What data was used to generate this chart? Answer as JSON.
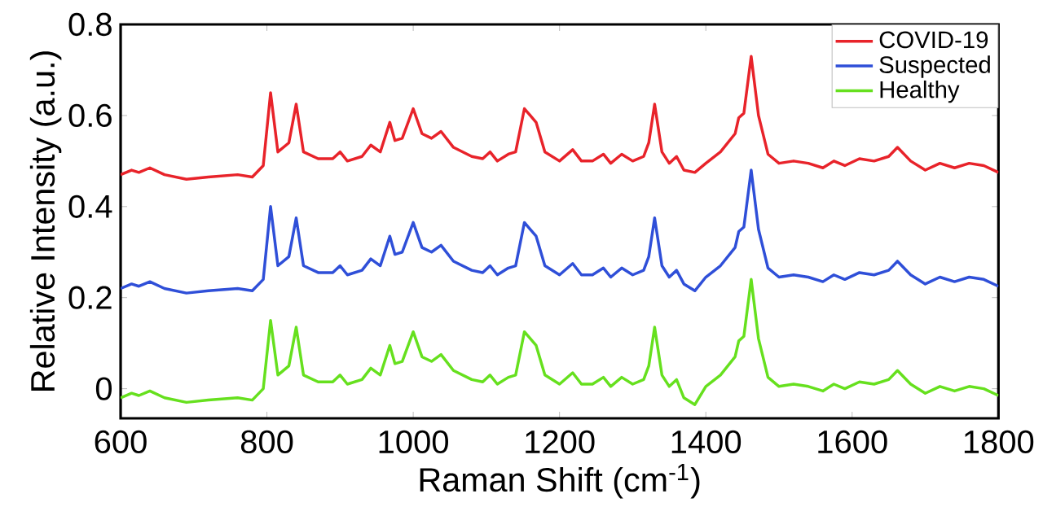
{
  "chart_data": {
    "type": "line",
    "xlabel": "Raman Shift (cm$^{-1}$)",
    "ylabel": "Relative Intensity (a.u.)",
    "xlim": [
      600,
      1800
    ],
    "xticks": [
      600,
      800,
      1000,
      1200,
      1400,
      1600,
      1800
    ],
    "ylim": [
      -0.065,
      0.8
    ],
    "yticks": [
      0,
      0.2,
      0.4,
      0.6,
      0.8
    ],
    "grid": false,
    "legend": "top right",
    "marker": "none",
    "line_style": "solid",
    "x": [
      600,
      615,
      625,
      640,
      660,
      690,
      720,
      760,
      780,
      795,
      805,
      815,
      830,
      840,
      850,
      870,
      890,
      900,
      910,
      930,
      942,
      955,
      968,
      975,
      985,
      1000,
      1012,
      1025,
      1038,
      1055,
      1080,
      1095,
      1105,
      1115,
      1130,
      1140,
      1152,
      1160,
      1168,
      1180,
      1200,
      1218,
      1230,
      1245,
      1260,
      1270,
      1285,
      1300,
      1315,
      1322,
      1330,
      1340,
      1350,
      1360,
      1370,
      1385,
      1400,
      1420,
      1440,
      1445,
      1452,
      1462,
      1472,
      1485,
      1500,
      1520,
      1540,
      1560,
      1575,
      1590,
      1610,
      1630,
      1650,
      1662,
      1680,
      1700,
      1720,
      1740,
      1760,
      1780,
      1800
    ],
    "series": [
      {
        "name": "COVID-19",
        "color": "#e8232a",
        "values": [
          0.47,
          0.48,
          0.475,
          0.485,
          0.47,
          0.46,
          0.465,
          0.47,
          0.465,
          0.49,
          0.65,
          0.52,
          0.54,
          0.625,
          0.52,
          0.505,
          0.505,
          0.52,
          0.5,
          0.51,
          0.535,
          0.52,
          0.585,
          0.545,
          0.55,
          0.615,
          0.56,
          0.55,
          0.565,
          0.53,
          0.51,
          0.505,
          0.52,
          0.5,
          0.515,
          0.52,
          0.615,
          0.6,
          0.585,
          0.52,
          0.5,
          0.525,
          0.5,
          0.5,
          0.515,
          0.495,
          0.515,
          0.5,
          0.51,
          0.54,
          0.625,
          0.52,
          0.495,
          0.51,
          0.48,
          0.475,
          0.495,
          0.52,
          0.56,
          0.595,
          0.605,
          0.73,
          0.6,
          0.515,
          0.495,
          0.5,
          0.495,
          0.485,
          0.5,
          0.49,
          0.505,
          0.5,
          0.51,
          0.53,
          0.5,
          0.48,
          0.495,
          0.485,
          0.495,
          0.49,
          0.475
        ]
      },
      {
        "name": "Suspected",
        "color": "#2f4fd8",
        "values": [
          0.22,
          0.23,
          0.225,
          0.235,
          0.22,
          0.21,
          0.215,
          0.22,
          0.215,
          0.24,
          0.4,
          0.27,
          0.29,
          0.375,
          0.27,
          0.255,
          0.255,
          0.27,
          0.25,
          0.26,
          0.285,
          0.27,
          0.335,
          0.295,
          0.3,
          0.365,
          0.31,
          0.3,
          0.315,
          0.28,
          0.26,
          0.255,
          0.27,
          0.25,
          0.265,
          0.27,
          0.365,
          0.35,
          0.335,
          0.27,
          0.25,
          0.275,
          0.25,
          0.25,
          0.265,
          0.245,
          0.265,
          0.25,
          0.26,
          0.29,
          0.375,
          0.27,
          0.245,
          0.26,
          0.23,
          0.215,
          0.245,
          0.27,
          0.31,
          0.345,
          0.355,
          0.48,
          0.35,
          0.265,
          0.245,
          0.25,
          0.245,
          0.235,
          0.25,
          0.24,
          0.255,
          0.25,
          0.26,
          0.28,
          0.25,
          0.23,
          0.245,
          0.235,
          0.245,
          0.24,
          0.225
        ]
      },
      {
        "name": "Healthy",
        "color": "#66e01e",
        "values": [
          -0.02,
          -0.01,
          -0.015,
          -0.005,
          -0.02,
          -0.03,
          -0.025,
          -0.02,
          -0.025,
          0.0,
          0.15,
          0.03,
          0.05,
          0.135,
          0.03,
          0.015,
          0.015,
          0.03,
          0.01,
          0.02,
          0.045,
          0.03,
          0.095,
          0.055,
          0.06,
          0.125,
          0.07,
          0.06,
          0.075,
          0.04,
          0.02,
          0.015,
          0.03,
          0.01,
          0.025,
          0.03,
          0.125,
          0.11,
          0.095,
          0.03,
          0.01,
          0.035,
          0.01,
          0.01,
          0.025,
          0.005,
          0.025,
          0.01,
          0.02,
          0.05,
          0.135,
          0.03,
          0.005,
          0.02,
          -0.02,
          -0.035,
          0.005,
          0.03,
          0.07,
          0.105,
          0.115,
          0.24,
          0.11,
          0.025,
          0.005,
          0.01,
          0.005,
          -0.005,
          0.01,
          0.0,
          0.015,
          0.01,
          0.02,
          0.04,
          0.01,
          -0.01,
          0.005,
          -0.005,
          0.005,
          0.0,
          -0.015
        ]
      }
    ]
  }
}
